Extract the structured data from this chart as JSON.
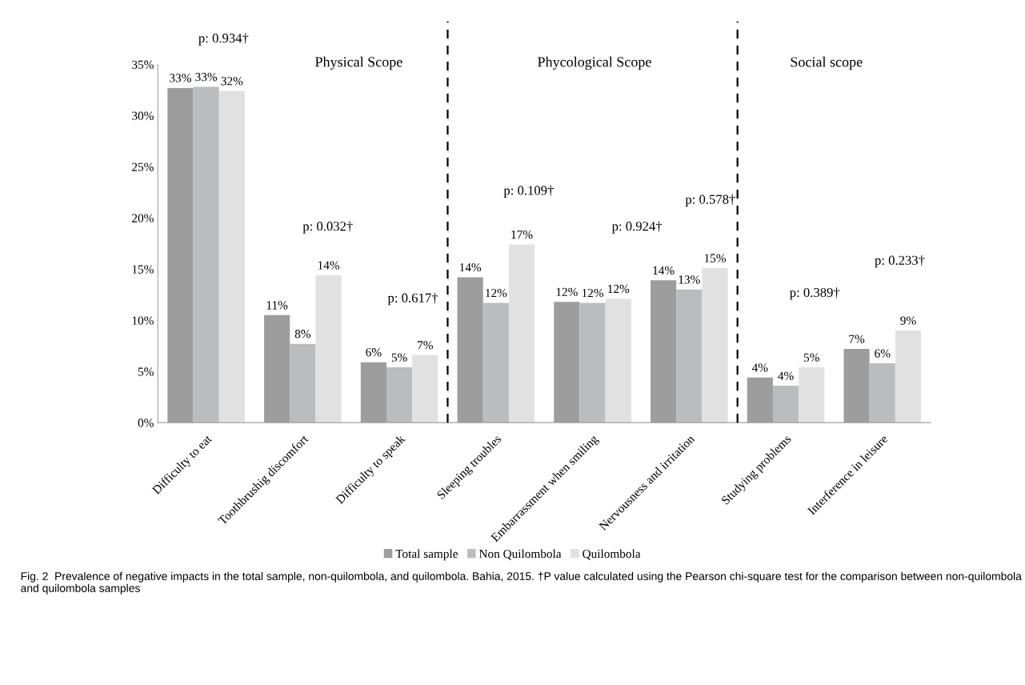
{
  "chart_data": {
    "type": "bar",
    "categories": [
      "Difficulty to eat",
      "Toothbrushig discomfort",
      "Difficulty to speak",
      "Sleeping troubles",
      "Embarrassment when smiling",
      "Nervousness and irritation",
      "Studying problems",
      "Interference in leisure"
    ],
    "series": [
      {
        "name": "Total sample",
        "color": "#9d9d9d",
        "values": [
          32.7,
          10.5,
          5.9,
          14.2,
          11.8,
          13.9,
          4.4,
          7.2
        ],
        "value_labels": [
          "33%",
          "11%",
          "6%",
          "14%",
          "12%",
          "14%",
          "4%",
          "7%"
        ]
      },
      {
        "name": "Non Quilombola",
        "color": "#bbbcbe",
        "values": [
          32.8,
          7.7,
          5.4,
          11.7,
          11.7,
          13.0,
          3.6,
          5.8
        ],
        "value_labels": [
          "33%",
          "8%",
          "5%",
          "12%",
          "12%",
          "13%",
          "4%",
          "6%"
        ]
      },
      {
        "name": "Quilombola",
        "color": "#e1e1e1",
        "values": [
          32.4,
          14.4,
          6.6,
          17.4,
          12.1,
          15.1,
          5.4,
          9.0
        ],
        "value_labels": [
          "32%",
          "14%",
          "7%",
          "17%",
          "12%",
          "15%",
          "5%",
          "9%"
        ]
      }
    ],
    "ylim": [
      0,
      35
    ],
    "yticks": [
      {
        "value": 0,
        "label": "0%"
      },
      {
        "value": 5,
        "label": "5%"
      },
      {
        "value": 10,
        "label": "10%"
      },
      {
        "value": 15,
        "label": "15%"
      },
      {
        "value": 20,
        "label": "20%"
      },
      {
        "value": 25,
        "label": "25%"
      },
      {
        "value": 30,
        "label": "30%"
      },
      {
        "value": 35,
        "label": "35%"
      }
    ],
    "annotations": [
      "p: 0.934†",
      "p: 0.032†",
      "p: 0.617†",
      "p: 0.109†",
      "p: 0.924†",
      "p: 0.578†",
      "p: 0.389†",
      "p: 0.233†",
      "Physical Scope",
      "Phycological Scope",
      "Social scope",
      "Fig. 2  Prevalence of negative impacts in the total sample, non-quilombola, and quilombola. Bahia, 2015. †P value calculated using the Pearson chi-square test for the comparison between non-quilombola and quilombola samples"
    ],
    "grid": false,
    "legend": "bottom"
  }
}
